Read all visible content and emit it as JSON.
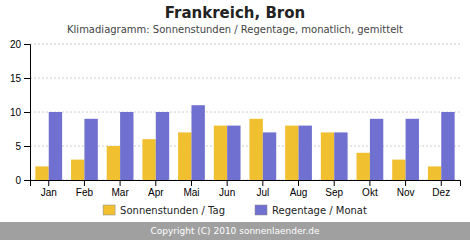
{
  "chart_data": {
    "type": "bar",
    "title": "Frankreich, Bron",
    "subtitle": "Klimadiagramm: Sonnenstunden / Regentage, monatlich, gemittelt",
    "annotations": [
      "Copyright (C) 2010 sonnenlaender.de"
    ],
    "categories": [
      "Jan",
      "Feb",
      "Mar",
      "Apr",
      "Mai",
      "Jun",
      "Jul",
      "Aug",
      "Sep",
      "Okt",
      "Nov",
      "Dez"
    ],
    "series": [
      {
        "name": "Sonnenstunden / Tag",
        "color": "#f0c030",
        "values": [
          2,
          3,
          5,
          6,
          7,
          8,
          9,
          8,
          7,
          4,
          3,
          2
        ]
      },
      {
        "name": "Regentage / Monat",
        "color": "#7070d0",
        "values": [
          10,
          9,
          10,
          10,
          11,
          8,
          7,
          8,
          7,
          9,
          9,
          10
        ]
      }
    ],
    "ylim": [
      0,
      20
    ],
    "yticks": [
      0,
      5,
      10,
      15,
      20
    ],
    "grid": true,
    "legend": "bottom"
  }
}
